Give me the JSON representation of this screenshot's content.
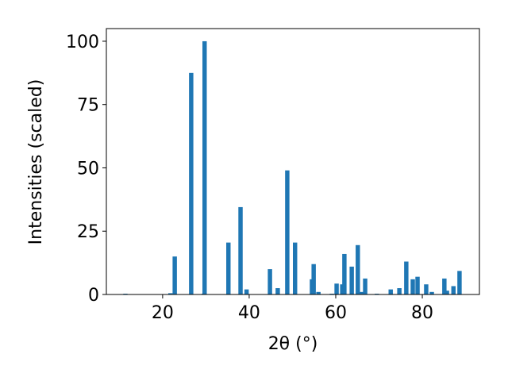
{
  "chart_data": {
    "type": "bar",
    "xlabel": "2θ (°)",
    "ylabel": "Intensities (scaled)",
    "x": [
      11.4,
      21.8,
      22.8,
      26.6,
      29.5,
      29.7,
      35.2,
      38.0,
      39.4,
      44.8,
      46.6,
      48.8,
      50.6,
      54.5,
      54.9,
      56.0,
      59.1,
      60.2,
      61.5,
      62.0,
      63.7,
      65.1,
      66.1,
      66.8,
      69.5,
      72.7,
      74.7,
      76.3,
      77.8,
      78.9,
      80.9,
      82.2,
      85.1,
      85.7,
      87.2,
      88.6
    ],
    "values": [
      0.3,
      0.5,
      15,
      87.5,
      0.3,
      100,
      20.5,
      34.5,
      2,
      10,
      2.5,
      49,
      20.5,
      6,
      12,
      1,
      0.3,
      4.3,
      4,
      16,
      11,
      19.5,
      1,
      6.3,
      0.3,
      2,
      2.5,
      13,
      6,
      7,
      4,
      1,
      6.3,
      1.5,
      3.3,
      9.3
    ],
    "bar_width": 1,
    "color": "#1f77b4",
    "xlim": [
      7,
      93.2
    ],
    "xticks": [
      20,
      40,
      60,
      80
    ],
    "ylim": [
      0,
      105
    ],
    "yticks": [
      0,
      25,
      50,
      75,
      100
    ]
  }
}
